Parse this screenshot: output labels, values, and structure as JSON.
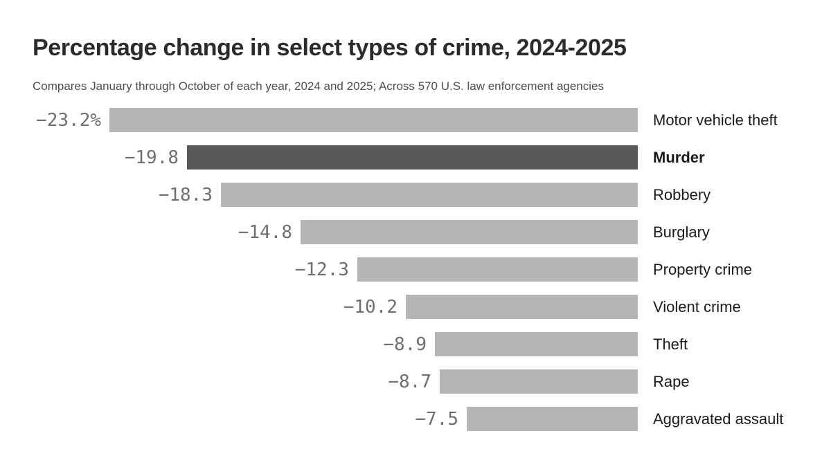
{
  "header": {
    "title": "Percentage change in select types of crime, 2024-2025",
    "subtitle": "Compares January through October of each year, 2024 and 2025; Across 570 U.S. law enforcement agencies"
  },
  "chart_data": {
    "type": "bar",
    "orientation": "horizontal-right-aligned",
    "title": "Percentage change in select types of crime, 2024-2025",
    "subtitle": "Compares January through October of each year, 2024 and 2025; Across 570 U.S. law enforcement agencies",
    "unit": "%",
    "xlim": [
      -23.2,
      0
    ],
    "grid": false,
    "legend": "none",
    "categories": [
      "Motor vehicle theft",
      "Murder",
      "Robbery",
      "Burglary",
      "Property crime",
      "Violent crime",
      "Theft",
      "Rape",
      "Aggravated assault"
    ],
    "values": [
      -23.2,
      -19.8,
      -18.3,
      -14.8,
      -12.3,
      -10.2,
      -8.9,
      -8.7,
      -7.5
    ],
    "value_labels": [
      "−23.2%",
      "−19.8",
      "−18.3",
      "−14.8",
      "−12.3",
      "−10.2",
      "−8.9",
      "−8.7",
      "−7.5"
    ],
    "highlight_category": "Murder",
    "bar_color": "#b5b5b5",
    "highlight_color": "#595959",
    "value_label_color": "#6f6f6f",
    "category_label_color": "#1a1a1a"
  }
}
